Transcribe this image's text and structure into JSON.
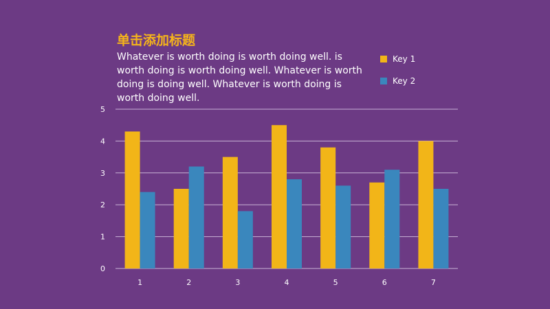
{
  "slide": {
    "title": "单击添加标题",
    "subtitle": "Whatever is worth doing is worth doing well. is worth doing is worth doing well. Whatever is worth doing is doing well. Whatever is worth doing is worth doing well."
  },
  "colors": {
    "background": "#6c3a84",
    "title": "#f5b41a",
    "key1": "#f2b518",
    "key2": "#3a87bd",
    "grid": "#c9b3d6"
  },
  "chart_data": {
    "type": "bar",
    "title": "",
    "xlabel": "",
    "ylabel": "",
    "categories": [
      "1",
      "2",
      "3",
      "4",
      "5",
      "6",
      "7"
    ],
    "series": [
      {
        "name": "Key 1",
        "values": [
          4.3,
          2.5,
          3.5,
          4.5,
          3.8,
          2.7,
          4.0
        ]
      },
      {
        "name": "Key 2",
        "values": [
          2.4,
          3.2,
          1.8,
          2.8,
          2.6,
          3.1,
          2.5
        ]
      }
    ],
    "ylim": [
      0,
      5
    ],
    "yticks": [
      "0",
      "1",
      "2",
      "3",
      "4",
      "5"
    ],
    "grid": true,
    "legend_position": "top-right"
  }
}
